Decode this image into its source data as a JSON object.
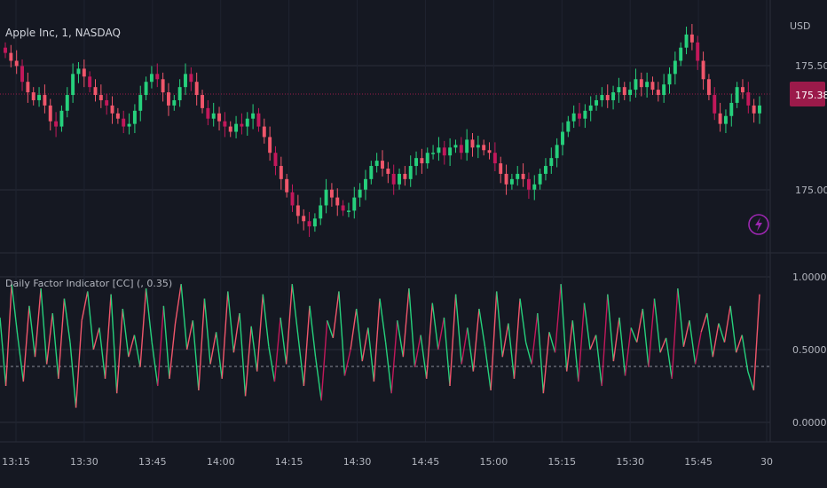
{
  "header": {
    "symbol_label": "Apple Inc, 1, NASDAQ",
    "currency": "USD"
  },
  "price_pane": {
    "last_price_label": "175.38",
    "last_price": 175.38,
    "y_ticks": [
      "175.50",
      "175.00"
    ],
    "badge_color": "#9b1a4a"
  },
  "indicator_pane": {
    "title": "Daily Factor Indicator [CC] (, 0.35)",
    "y_ticks": [
      "1.0000",
      "0.5000",
      "0.0000"
    ],
    "threshold": 0.35
  },
  "x_axis": {
    "ticks": [
      "13:15",
      "13:30",
      "13:45",
      "14:00",
      "14:15",
      "14:30",
      "14:45",
      "15:00",
      "15:15",
      "15:30",
      "15:45",
      "30"
    ]
  },
  "colors": {
    "up": "#26d07c",
    "down": "#f0566b",
    "down_dark": "#c2185b",
    "background": "#151822",
    "grid": "#2a2e39",
    "lightning": "#9c27b0"
  },
  "chart_data": [
    {
      "type": "candlestick",
      "title": "Apple Inc, 1, NASDAQ",
      "ylabel": "USD",
      "ylim": [
        174.87,
        175.68
      ],
      "y": [
        175.58,
        175.55,
        175.53,
        175.47,
        175.43,
        175.4,
        175.42,
        175.38,
        175.32,
        175.3,
        175.36,
        175.42,
        175.5,
        175.52,
        175.49,
        175.45,
        175.42,
        175.4,
        175.38,
        175.35,
        175.33,
        175.3,
        175.31,
        175.36,
        175.42,
        175.47,
        175.5,
        175.48,
        175.43,
        175.38,
        175.4,
        175.45,
        175.5,
        175.47,
        175.42,
        175.37,
        175.33,
        175.35,
        175.32,
        175.3,
        175.28,
        175.31,
        175.3,
        175.33,
        175.35,
        175.3,
        175.26,
        175.2,
        175.15,
        175.1,
        175.05,
        175.0,
        174.96,
        174.94,
        174.92,
        174.95,
        175.0,
        175.06,
        175.03,
        175.0,
        174.98,
        174.98,
        175.03,
        175.06,
        175.1,
        175.15,
        175.17,
        175.14,
        175.12,
        175.08,
        175.12,
        175.1,
        175.15,
        175.18,
        175.16,
        175.2,
        175.2,
        175.22,
        175.19,
        175.22,
        175.23,
        175.2,
        175.25,
        175.22,
        175.23,
        175.21,
        175.2,
        175.16,
        175.12,
        175.08,
        175.1,
        175.12,
        175.1,
        175.06,
        175.08,
        175.12,
        175.15,
        175.18,
        175.23,
        175.28,
        175.32,
        175.35,
        175.33,
        175.36,
        175.38,
        175.4,
        175.42,
        175.4,
        175.43,
        175.45,
        175.42,
        175.44,
        175.48,
        175.45,
        175.47,
        175.44,
        175.42,
        175.46,
        175.5,
        175.55,
        175.6,
        175.65,
        175.62,
        175.55,
        175.48,
        175.42,
        175.35,
        175.31,
        175.34,
        175.39,
        175.45,
        175.43,
        175.38,
        175.35,
        175.38
      ]
    },
    {
      "type": "line",
      "title": "Daily Factor Indicator [CC] (, 0.35)",
      "ylim": [
        0,
        1
      ],
      "threshold": 0.35,
      "y": [
        0.72,
        0.25,
        0.95,
        0.6,
        0.28,
        0.8,
        0.45,
        0.92,
        0.4,
        0.75,
        0.3,
        0.85,
        0.55,
        0.1,
        0.7,
        0.9,
        0.5,
        0.65,
        0.3,
        0.88,
        0.2,
        0.78,
        0.45,
        0.6,
        0.38,
        0.92,
        0.55,
        0.25,
        0.8,
        0.3,
        0.68,
        0.95,
        0.5,
        0.7,
        0.22,
        0.85,
        0.4,
        0.62,
        0.3,
        0.9,
        0.48,
        0.75,
        0.18,
        0.66,
        0.35,
        0.88,
        0.52,
        0.28,
        0.72,
        0.4,
        0.95,
        0.6,
        0.25,
        0.8,
        0.45,
        0.15,
        0.7,
        0.58,
        0.9,
        0.32,
        0.5,
        0.78,
        0.42,
        0.65,
        0.28,
        0.85,
        0.55,
        0.2,
        0.7,
        0.45,
        0.92,
        0.38,
        0.6,
        0.3,
        0.82,
        0.5,
        0.72,
        0.25,
        0.88,
        0.4,
        0.65,
        0.35,
        0.78,
        0.52,
        0.22,
        0.9,
        0.45,
        0.68,
        0.3,
        0.85,
        0.55,
        0.4,
        0.75,
        0.2,
        0.62,
        0.48,
        0.95,
        0.35,
        0.7,
        0.28,
        0.82,
        0.5,
        0.6,
        0.25,
        0.88,
        0.42,
        0.72,
        0.32,
        0.65,
        0.55,
        0.78,
        0.38,
        0.85,
        0.48,
        0.58,
        0.3,
        0.92,
        0.52,
        0.7,
        0.4,
        0.62,
        0.75,
        0.45,
        0.68,
        0.55,
        0.8,
        0.48,
        0.6,
        0.35,
        0.22,
        0.88
      ]
    }
  ]
}
